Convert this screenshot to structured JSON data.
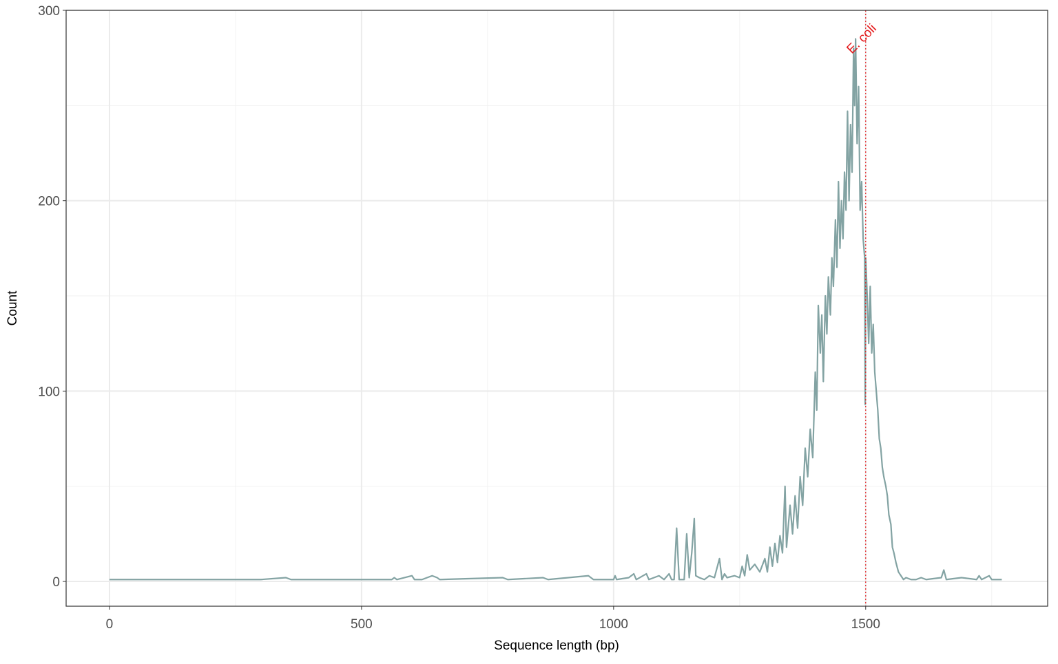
{
  "chart_data": {
    "type": "line",
    "xlabel": "Sequence length (bp)",
    "ylabel": "Count",
    "color": "#83a3a3",
    "x": [
      0,
      300,
      350,
      360,
      560,
      565,
      570,
      600,
      605,
      620,
      640,
      650,
      655,
      780,
      790,
      860,
      870,
      950,
      960,
      1000,
      1003,
      1006,
      1030,
      1040,
      1045,
      1065,
      1070,
      1090,
      1100,
      1110,
      1115,
      1120,
      1125,
      1130,
      1140,
      1145,
      1150,
      1155,
      1160,
      1163,
      1170,
      1180,
      1190,
      1200,
      1210,
      1215,
      1220,
      1225,
      1240,
      1250,
      1255,
      1260,
      1265,
      1270,
      1280,
      1290,
      1300,
      1305,
      1310,
      1315,
      1320,
      1325,
      1330,
      1335,
      1340,
      1343,
      1350,
      1355,
      1360,
      1365,
      1370,
      1375,
      1380,
      1385,
      1390,
      1395,
      1400,
      1403,
      1406,
      1410,
      1413,
      1416,
      1420,
      1423,
      1426,
      1430,
      1433,
      1436,
      1440,
      1443,
      1446,
      1449,
      1452,
      1455,
      1458,
      1461,
      1464,
      1467,
      1470,
      1473,
      1476,
      1478,
      1480,
      1483,
      1486,
      1489,
      1492,
      1495,
      1498,
      1499,
      1500,
      1503,
      1506,
      1509,
      1512,
      1515,
      1518,
      1521,
      1524,
      1527,
      1530,
      1533,
      1536,
      1540,
      1543,
      1546,
      1550,
      1553,
      1556,
      1560,
      1565,
      1570,
      1575,
      1580,
      1590,
      1600,
      1610,
      1620,
      1650,
      1655,
      1660,
      1690,
      1720,
      1725,
      1730,
      1745,
      1750,
      1770
    ],
    "values": [
      1,
      1,
      2,
      1,
      1,
      2,
      1,
      3,
      1,
      1,
      3,
      2,
      1,
      2,
      1,
      2,
      1,
      3,
      1,
      1,
      3,
      1,
      2,
      4,
      1,
      4,
      1,
      3,
      1,
      4,
      1,
      1,
      28,
      1,
      1,
      25,
      2,
      15,
      33,
      3,
      2,
      1,
      3,
      2,
      12,
      1,
      4,
      2,
      3,
      2,
      8,
      3,
      14,
      6,
      9,
      5,
      12,
      5,
      18,
      8,
      20,
      10,
      24,
      15,
      50,
      18,
      40,
      25,
      45,
      28,
      55,
      40,
      70,
      55,
      80,
      65,
      110,
      90,
      145,
      120,
      140,
      105,
      150,
      130,
      160,
      140,
      170,
      155,
      190,
      165,
      210,
      175,
      200,
      180,
      215,
      195,
      247,
      200,
      240,
      215,
      280,
      250,
      285,
      230,
      260,
      195,
      210,
      180,
      170,
      93,
      170,
      150,
      125,
      155,
      120,
      135,
      110,
      100,
      90,
      75,
      70,
      60,
      55,
      50,
      45,
      35,
      30,
      18,
      15,
      10,
      5,
      3,
      1,
      2,
      1,
      1,
      2,
      1,
      2,
      6,
      1,
      2,
      1,
      3,
      1,
      3,
      1,
      1
    ],
    "xlim": [
      -86,
      1861
    ],
    "ylim": [
      -13,
      300
    ],
    "xticks": [
      0,
      500,
      1000,
      1500
    ],
    "yticks": [
      0,
      100,
      200,
      300
    ],
    "grid": true,
    "vline": {
      "x": 1500,
      "label": "E. coli",
      "color": "#e41a1c"
    }
  }
}
